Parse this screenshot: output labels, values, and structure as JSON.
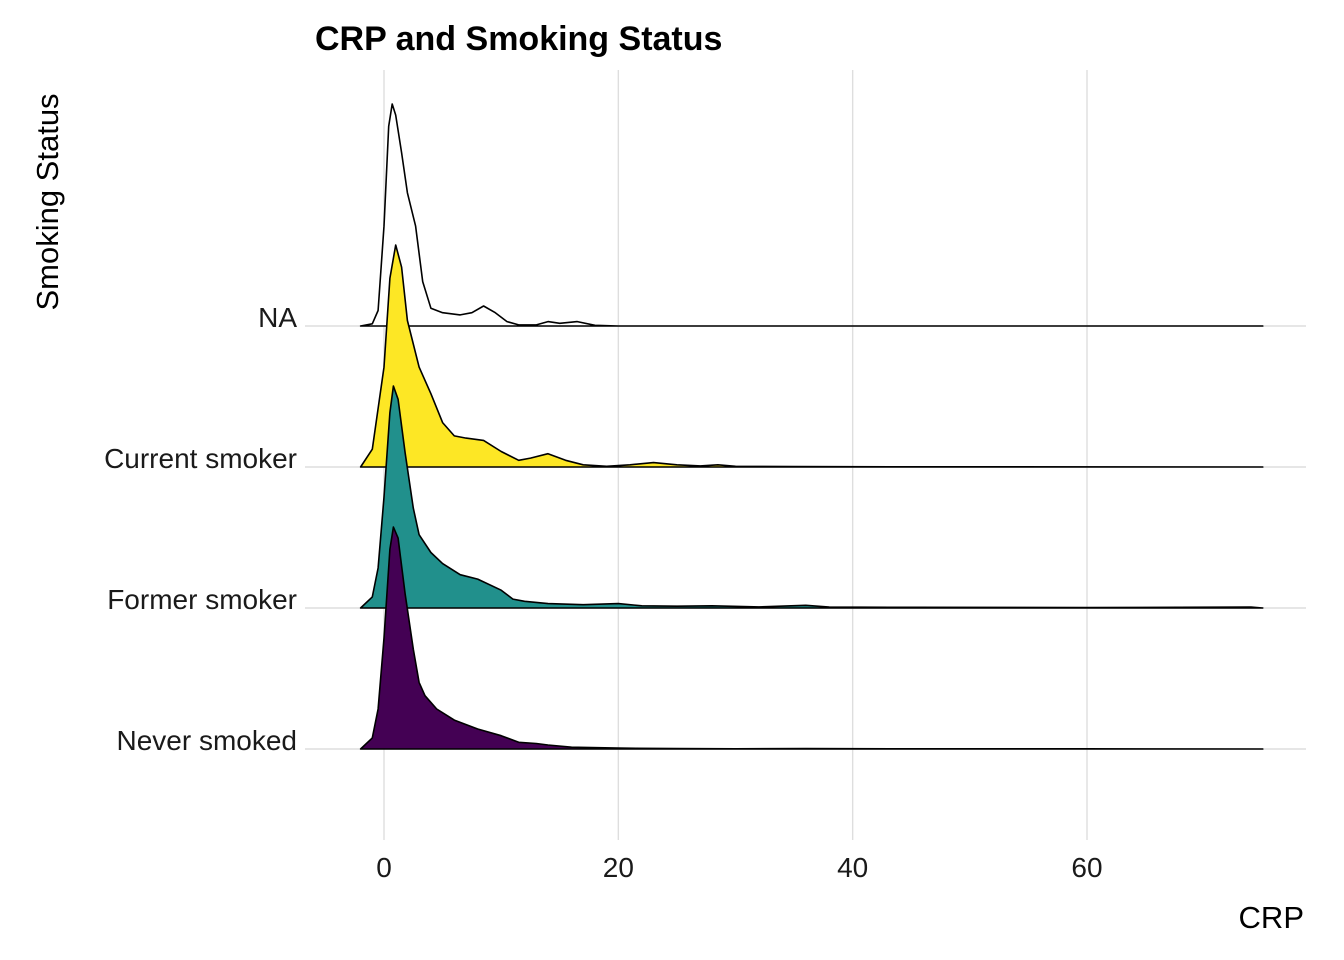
{
  "chart_data": {
    "type": "ridgeline",
    "title": "CRP and Smoking Status",
    "xlabel": "CRP",
    "ylabel": "Smoking Status",
    "xlim": [
      -5,
      75
    ],
    "x_ticks": [
      0,
      20,
      40,
      60
    ],
    "grid": true,
    "legend": "none",
    "series": [
      {
        "name": "Never smoked",
        "color": "#440154",
        "density": [
          [
            -2.0,
            0.0
          ],
          [
            -1.0,
            0.05
          ],
          [
            -0.5,
            0.18
          ],
          [
            0.0,
            0.5
          ],
          [
            0.5,
            0.9
          ],
          [
            0.8,
            1.0
          ],
          [
            1.2,
            0.95
          ],
          [
            1.8,
            0.7
          ],
          [
            2.5,
            0.45
          ],
          [
            3.0,
            0.3
          ],
          [
            3.5,
            0.24
          ],
          [
            4.5,
            0.18
          ],
          [
            6.0,
            0.13
          ],
          [
            8.0,
            0.09
          ],
          [
            10.0,
            0.06
          ],
          [
            11.5,
            0.03
          ],
          [
            13.0,
            0.025
          ],
          [
            14.0,
            0.018
          ],
          [
            16.0,
            0.008
          ],
          [
            20.0,
            0.004
          ],
          [
            25.0,
            0.002
          ],
          [
            30.0,
            0.001
          ],
          [
            36.0,
            0.002
          ],
          [
            45.0,
            0.001
          ],
          [
            60.0,
            0.0008
          ],
          [
            75.0,
            0.0
          ]
        ]
      },
      {
        "name": "Former smoker",
        "color": "#21908C",
        "density": [
          [
            -2.0,
            0.0
          ],
          [
            -1.0,
            0.05
          ],
          [
            -0.5,
            0.18
          ],
          [
            0.0,
            0.5
          ],
          [
            0.5,
            0.88
          ],
          [
            0.8,
            1.0
          ],
          [
            1.2,
            0.94
          ],
          [
            1.8,
            0.7
          ],
          [
            2.5,
            0.45
          ],
          [
            3.0,
            0.33
          ],
          [
            4.0,
            0.25
          ],
          [
            5.0,
            0.2
          ],
          [
            6.5,
            0.15
          ],
          [
            8.0,
            0.13
          ],
          [
            10.0,
            0.08
          ],
          [
            11.0,
            0.04
          ],
          [
            12.0,
            0.03
          ],
          [
            14.0,
            0.02
          ],
          [
            17.0,
            0.015
          ],
          [
            20.0,
            0.02
          ],
          [
            22.0,
            0.01
          ],
          [
            25.0,
            0.008
          ],
          [
            28.0,
            0.01
          ],
          [
            32.0,
            0.005
          ],
          [
            36.0,
            0.012
          ],
          [
            38.0,
            0.004
          ],
          [
            45.0,
            0.003
          ],
          [
            60.0,
            0.002
          ],
          [
            74.0,
            0.004
          ],
          [
            75.0,
            0.0
          ]
        ]
      },
      {
        "name": "Current smoker",
        "color": "#FDE725",
        "density": [
          [
            -2.0,
            0.0
          ],
          [
            -1.0,
            0.08
          ],
          [
            0.0,
            0.45
          ],
          [
            0.5,
            0.85
          ],
          [
            1.0,
            1.0
          ],
          [
            1.5,
            0.9
          ],
          [
            2.0,
            0.66
          ],
          [
            3.0,
            0.45
          ],
          [
            4.0,
            0.33
          ],
          [
            5.0,
            0.2
          ],
          [
            6.0,
            0.14
          ],
          [
            7.0,
            0.13
          ],
          [
            8.5,
            0.12
          ],
          [
            10.0,
            0.07
          ],
          [
            11.5,
            0.03
          ],
          [
            12.5,
            0.04
          ],
          [
            14.0,
            0.06
          ],
          [
            15.5,
            0.03
          ],
          [
            17.0,
            0.01
          ],
          [
            19.0,
            0.003
          ],
          [
            21.0,
            0.01
          ],
          [
            23.0,
            0.02
          ],
          [
            25.0,
            0.01
          ],
          [
            27.0,
            0.005
          ],
          [
            28.5,
            0.01
          ],
          [
            30.0,
            0.003
          ],
          [
            35.0,
            0.002
          ],
          [
            45.0,
            0.001
          ],
          [
            75.0,
            0.0
          ]
        ]
      },
      {
        "name": "NA",
        "color": "#ffffff",
        "density": [
          [
            -2.0,
            0.0
          ],
          [
            -1.0,
            0.01
          ],
          [
            -0.5,
            0.07
          ],
          [
            0.0,
            0.45
          ],
          [
            0.4,
            0.9
          ],
          [
            0.7,
            1.0
          ],
          [
            1.0,
            0.95
          ],
          [
            1.5,
            0.78
          ],
          [
            2.0,
            0.6
          ],
          [
            2.7,
            0.45
          ],
          [
            3.3,
            0.2
          ],
          [
            4.0,
            0.08
          ],
          [
            5.0,
            0.06
          ],
          [
            6.5,
            0.05
          ],
          [
            7.5,
            0.06
          ],
          [
            8.5,
            0.09
          ],
          [
            9.5,
            0.06
          ],
          [
            10.5,
            0.02
          ],
          [
            11.5,
            0.005
          ],
          [
            13.0,
            0.005
          ],
          [
            14.0,
            0.02
          ],
          [
            15.0,
            0.012
          ],
          [
            16.5,
            0.02
          ],
          [
            18.0,
            0.003
          ],
          [
            20.0,
            0.0
          ],
          [
            75.0,
            0.0
          ]
        ]
      }
    ]
  }
}
